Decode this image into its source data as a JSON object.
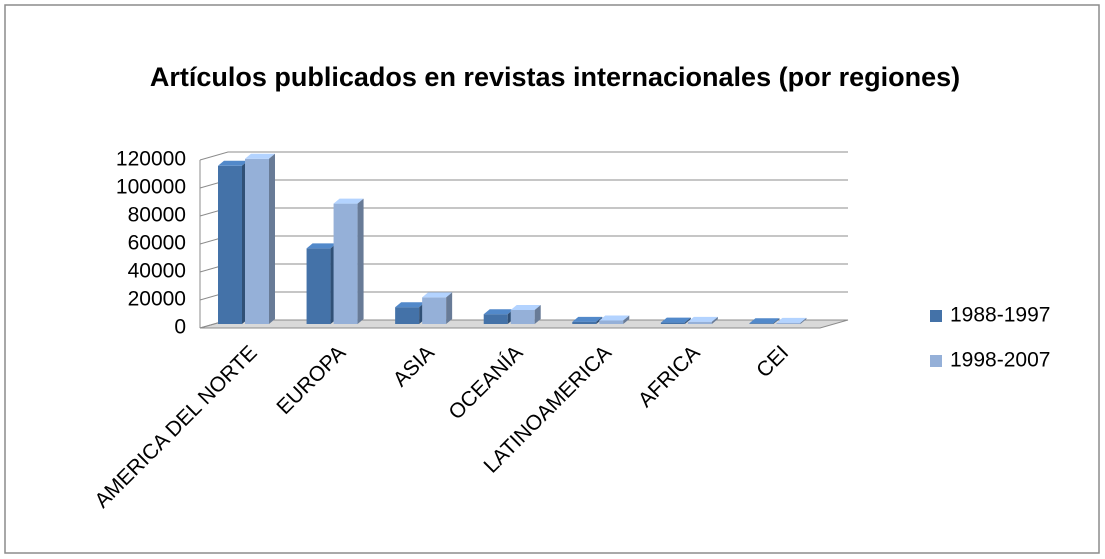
{
  "chart_data": {
    "type": "bar3d",
    "title": "Artículos publicados en revistas internacionales (por regiones)",
    "categories": [
      "AMERICA DEL NORTE",
      "EUROPA",
      "ASIA",
      "OCEANÍA",
      "LATINOAMERICA",
      "AFRICA",
      "CEI"
    ],
    "series": [
      {
        "name": "1988-1997",
        "color": "#4472a8",
        "values": [
          113000,
          54000,
          12000,
          7000,
          1500,
          1000,
          500
        ]
      },
      {
        "name": "1998-2007",
        "color": "#95b0d8",
        "values": [
          118000,
          86000,
          19000,
          10000,
          2500,
          1500,
          800
        ]
      }
    ],
    "ylim": [
      0,
      120000
    ],
    "yticks": [
      0,
      20000,
      40000,
      60000,
      80000,
      100000,
      120000
    ],
    "grid": true,
    "legend": "right"
  }
}
